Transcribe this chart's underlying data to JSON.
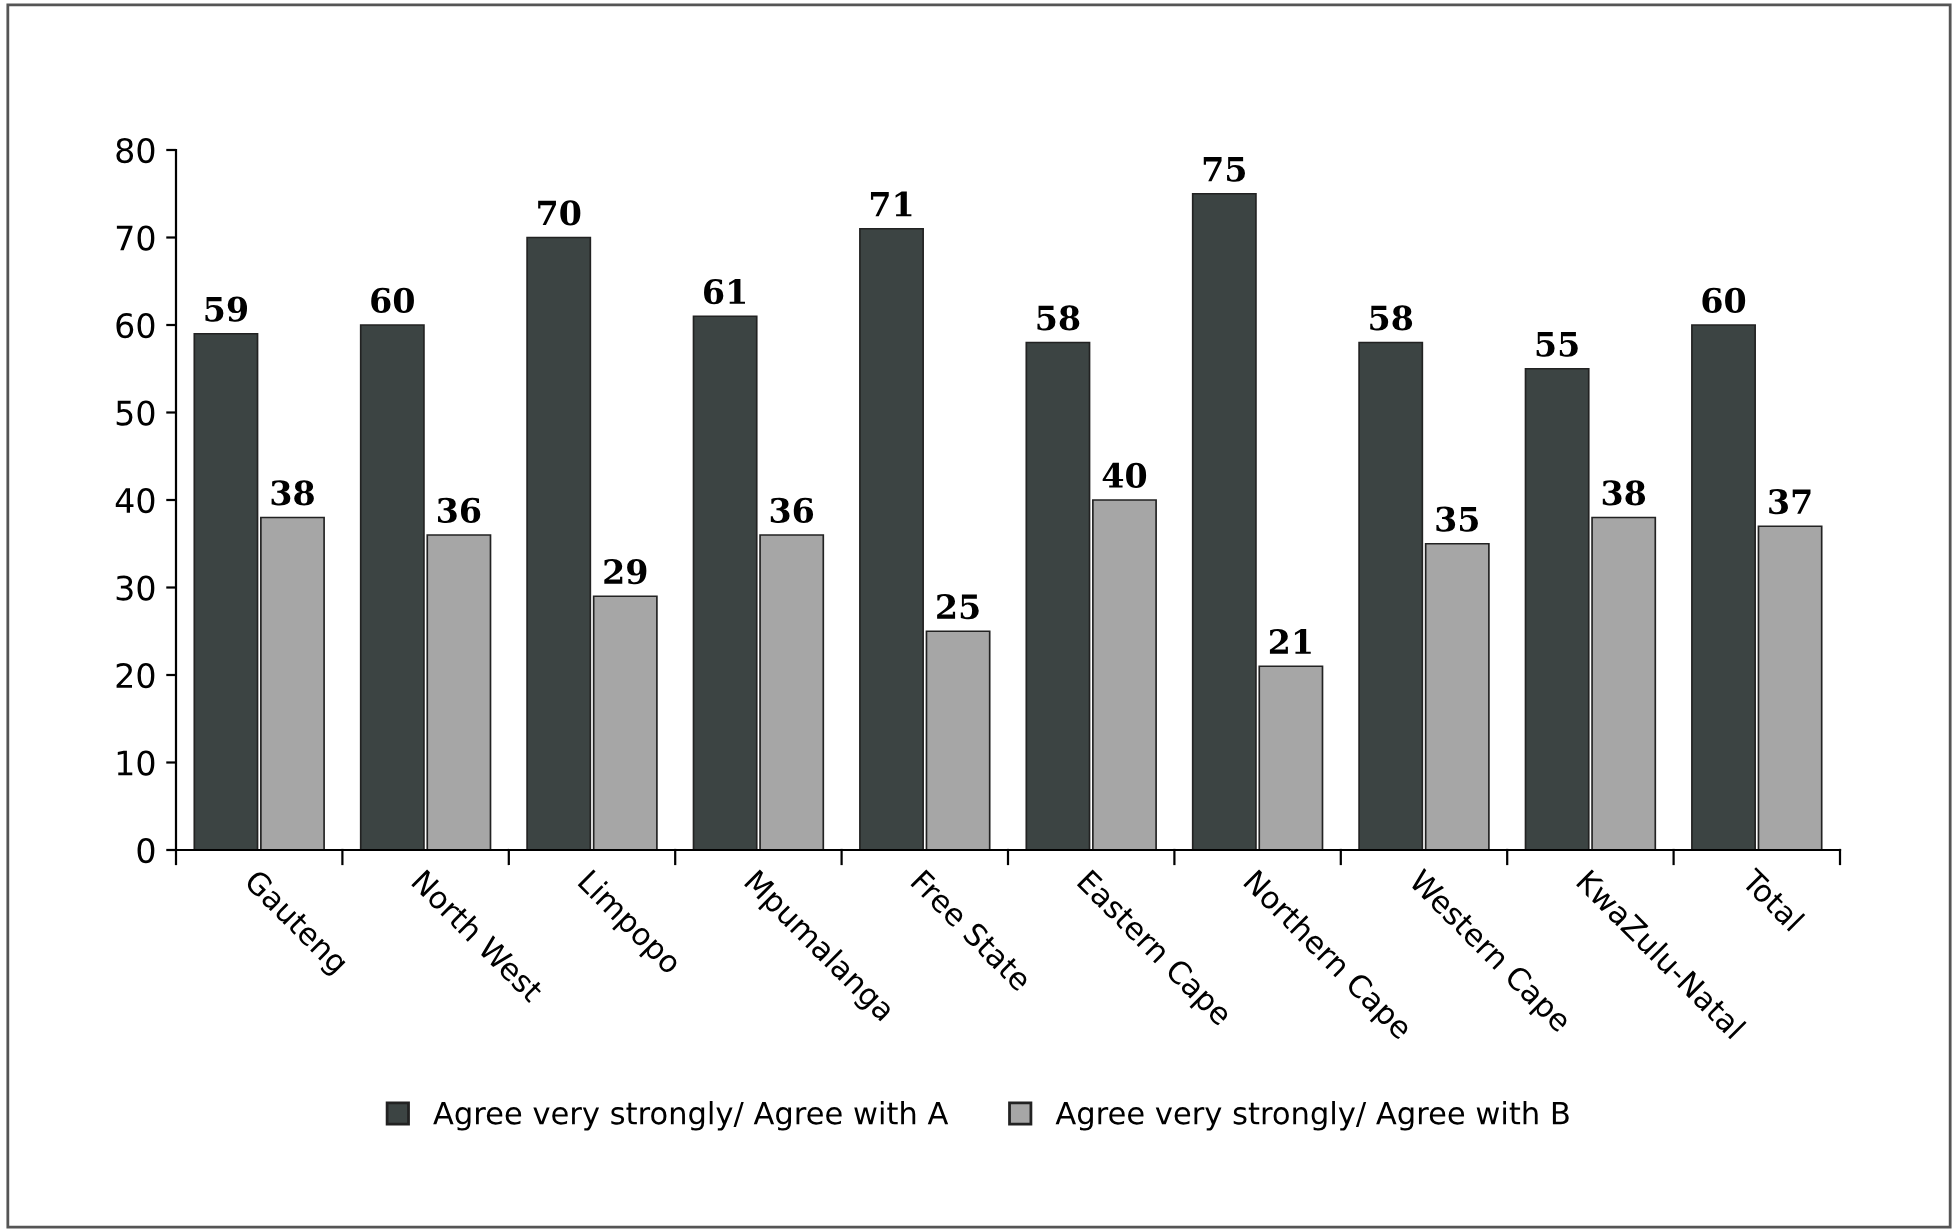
{
  "chart_data": {
    "type": "bar",
    "categories": [
      "Gauteng",
      "North West",
      "Limpopo",
      "Mpumalanga",
      "Free State",
      "Eastern Cape",
      "Northern Cape",
      "Western Cape",
      "KwaZulu-Natal",
      "Total"
    ],
    "series": [
      {
        "name": "Agree very strongly/ Agree with A",
        "color": "#3c4443",
        "values": [
          59,
          60,
          70,
          61,
          71,
          58,
          75,
          58,
          55,
          60
        ]
      },
      {
        "name": "Agree very strongly/ Agree with B",
        "color": "#a6a6a6",
        "values": [
          38,
          36,
          29,
          36,
          25,
          40,
          21,
          35,
          38,
          37
        ]
      }
    ],
    "ylim": [
      0,
      80
    ],
    "yticks": [
      0,
      10,
      20,
      30,
      40,
      50,
      60,
      70,
      80
    ],
    "data_labels": true,
    "grid": false,
    "legend": "bottom"
  }
}
